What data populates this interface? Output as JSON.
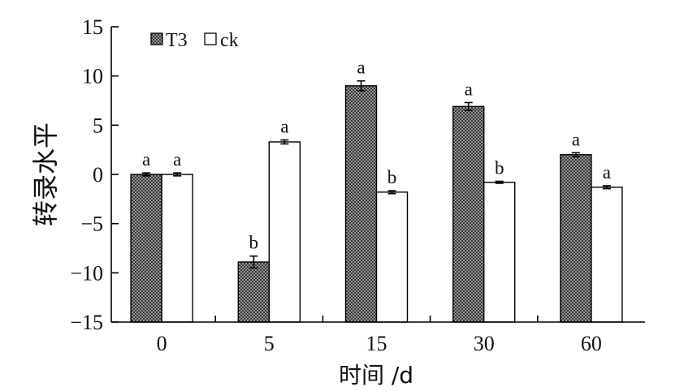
{
  "chart_data": {
    "type": "bar",
    "categories": [
      "0",
      "5",
      "15",
      "30",
      "60"
    ],
    "series": [
      {
        "name": "T3",
        "values": [
          0.0,
          -8.9,
          9.0,
          6.9,
          2.0
        ],
        "errors": [
          0.15,
          0.6,
          0.5,
          0.4,
          0.2
        ],
        "letters": [
          "a",
          "b",
          "a",
          "a",
          "a"
        ],
        "color": "#333333"
      },
      {
        "name": "ck",
        "values": [
          0.0,
          3.3,
          -1.8,
          -0.8,
          -1.3
        ],
        "errors": [
          0.15,
          0.2,
          0.15,
          0.1,
          0.15
        ],
        "letters": [
          "a",
          "a",
          "b",
          "b",
          "a"
        ],
        "color": "#ffffff"
      }
    ],
    "xlabel": "时间 /d",
    "ylabel": "转录水平",
    "ylim": [
      -15,
      15
    ],
    "yticks": [
      -15,
      -10,
      -5,
      0,
      5,
      10,
      15
    ],
    "ytick_labels": [
      "−15",
      "−10",
      "−5",
      "0",
      "5",
      "10",
      "15"
    ],
    "bar_baseline": -15,
    "legend": {
      "position": "top-left"
    },
    "grid": false
  }
}
